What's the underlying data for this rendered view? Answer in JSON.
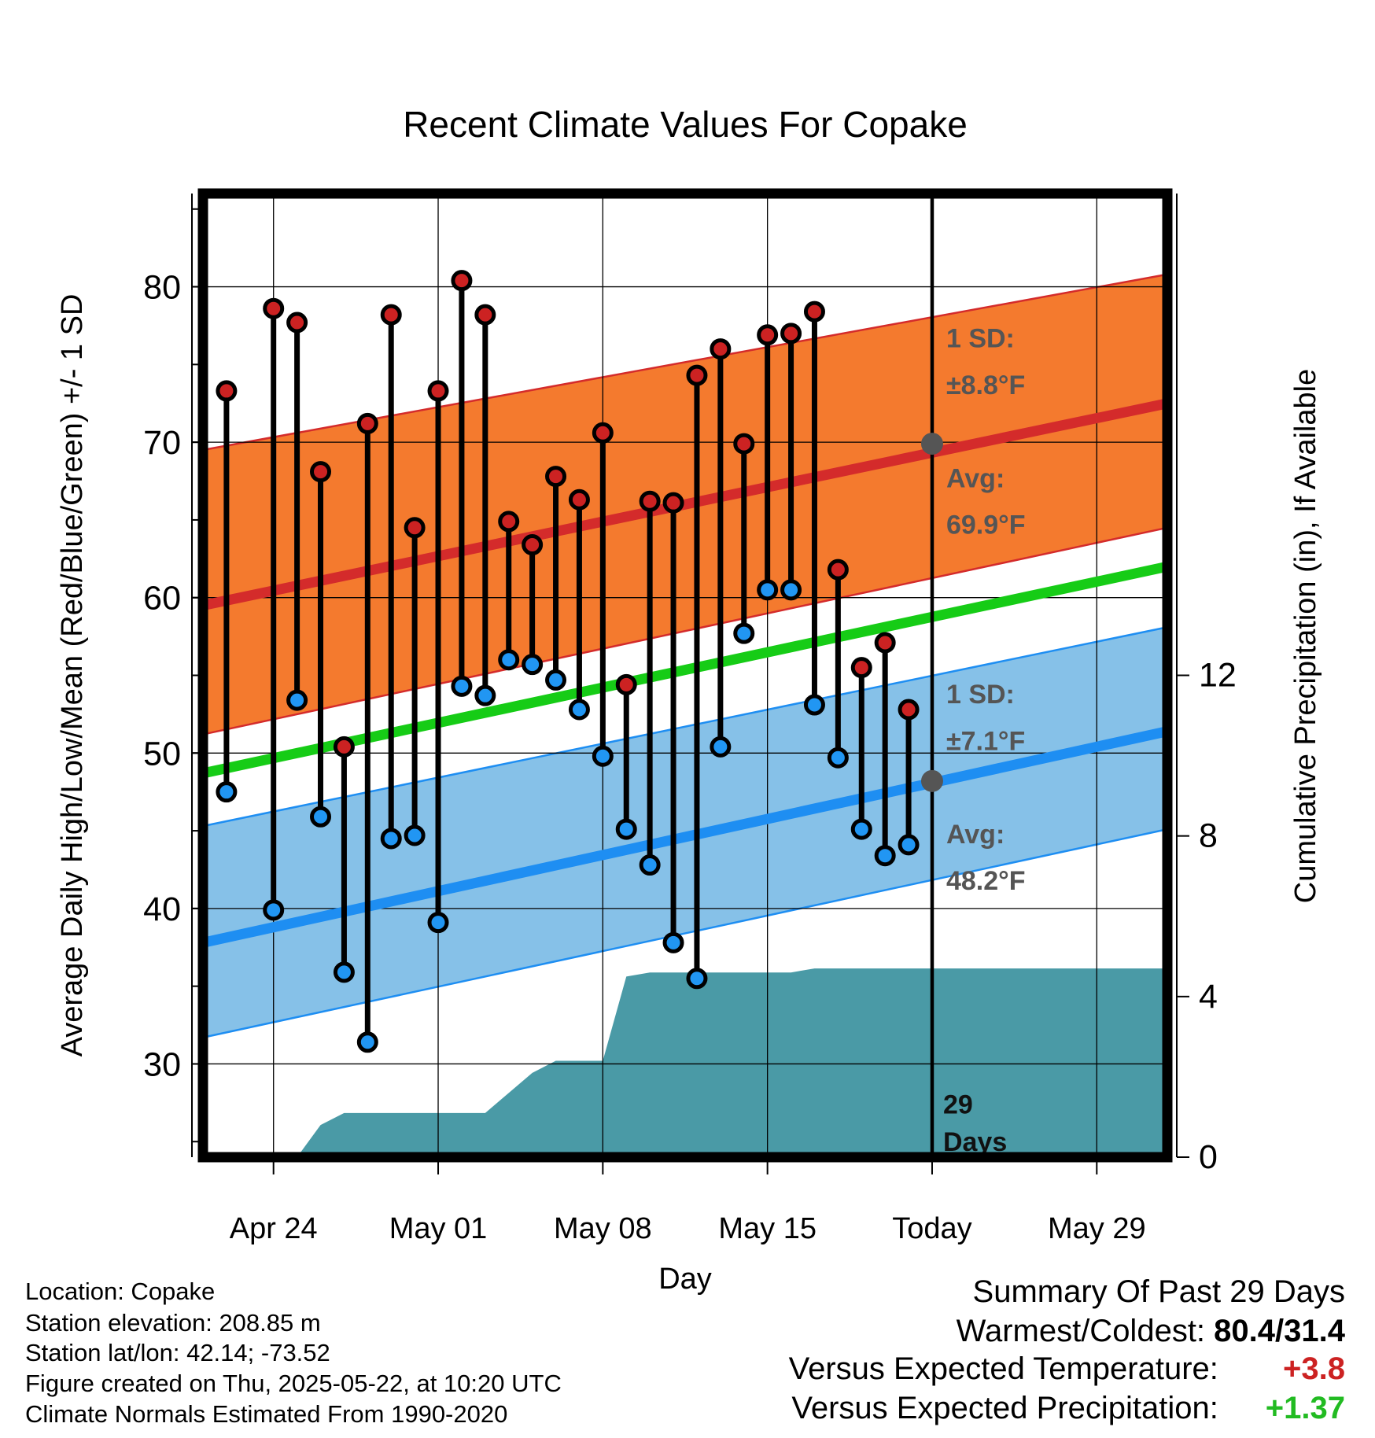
{
  "chart_data": {
    "type": "line",
    "title": "Recent Climate Values For Copake",
    "xlabel": "Day",
    "ylabel": "Average Daily High/Low/Mean (Red/Blue/Green) +/- 1 SD",
    "y2label": "Cumulative Precipitation (in), If Available",
    "x_domain": [
      "2025-04-21",
      "2025-06-01"
    ],
    "ylim": [
      24,
      86
    ],
    "y2lim": [
      0,
      24
    ],
    "yticks": [
      "30",
      "40",
      "50",
      "60",
      "70",
      "80"
    ],
    "y2ticks": [
      "0",
      "4",
      "8",
      "12"
    ],
    "xtick_labels": [
      {
        "date": "2025-04-24",
        "label": "Apr 24"
      },
      {
        "date": "2025-05-01",
        "label": "May 01"
      },
      {
        "date": "2025-05-08",
        "label": "May 08"
      },
      {
        "date": "2025-05-15",
        "label": "May 15"
      },
      {
        "date": "2025-05-22",
        "label": "Today"
      },
      {
        "date": "2025-05-29",
        "label": "May 29"
      }
    ],
    "grid": true,
    "colors": {
      "high_band": "#f47a2e",
      "high_avg": "#d42b2b",
      "low_band": "#86c1e8",
      "low_avg": "#1e8ef2",
      "mean_avg": "#16cc16",
      "precip": "#4a9aa6",
      "high_marker": "#cc2222",
      "low_marker": "#2196f3",
      "annotation": "#555555"
    },
    "normals": {
      "dates": [
        "2025-04-21",
        "2025-06-01"
      ],
      "high_avg": [
        59.5,
        72.5
      ],
      "high_upper": [
        69.5,
        80.8
      ],
      "high_lower": [
        51.2,
        64.5
      ],
      "low_avg": [
        37.8,
        51.4
      ],
      "low_upper": [
        45.3,
        58.1
      ],
      "low_lower": [
        31.7,
        45.1
      ],
      "mean_avg": [
        48.7,
        62.0
      ]
    },
    "observations": {
      "dates": [
        "2025-04-22",
        "2025-04-24",
        "2025-04-25",
        "2025-04-26",
        "2025-04-27",
        "2025-04-28",
        "2025-04-29",
        "2025-04-30",
        "2025-05-01",
        "2025-05-02",
        "2025-05-03",
        "2025-05-04",
        "2025-05-05",
        "2025-05-06",
        "2025-05-07",
        "2025-05-08",
        "2025-05-09",
        "2025-05-10",
        "2025-05-11",
        "2025-05-12",
        "2025-05-13",
        "2025-05-14",
        "2025-05-15",
        "2025-05-16",
        "2025-05-17",
        "2025-05-18",
        "2025-05-19",
        "2025-05-20",
        "2025-05-21"
      ],
      "highs": [
        73.3,
        78.6,
        77.7,
        68.1,
        50.4,
        71.2,
        78.2,
        64.5,
        73.3,
        80.4,
        78.2,
        64.9,
        63.4,
        67.8,
        66.3,
        70.6,
        54.4,
        66.2,
        66.1,
        74.3,
        76.0,
        69.9,
        76.9,
        77.0,
        78.4,
        61.8,
        55.5,
        57.1,
        52.8
      ],
      "lows": [
        47.5,
        39.9,
        53.4,
        45.9,
        35.9,
        31.4,
        44.5,
        44.7,
        39.1,
        54.3,
        53.7,
        56.0,
        55.7,
        54.7,
        52.8,
        49.8,
        45.1,
        42.8,
        37.8,
        35.5,
        50.4,
        57.7,
        60.5,
        60.5,
        53.1,
        49.7,
        45.1,
        43.4,
        44.1
      ]
    },
    "precipitation": {
      "dates": [
        "2025-04-22",
        "2025-04-23",
        "2025-04-24",
        "2025-04-25",
        "2025-04-26",
        "2025-04-27",
        "2025-04-28",
        "2025-04-29",
        "2025-04-30",
        "2025-05-01",
        "2025-05-02",
        "2025-05-03",
        "2025-05-04",
        "2025-05-05",
        "2025-05-06",
        "2025-05-07",
        "2025-05-08",
        "2025-05-09",
        "2025-05-10",
        "2025-05-11",
        "2025-05-12",
        "2025-05-13",
        "2025-05-14",
        "2025-05-15",
        "2025-05-16",
        "2025-05-17",
        "2025-05-18",
        "2025-05-19",
        "2025-05-20",
        "2025-05-21",
        "2025-06-01"
      ],
      "cumulative": [
        0,
        0,
        0,
        0,
        0.8,
        1.1,
        1.1,
        1.1,
        1.1,
        1.1,
        1.1,
        1.1,
        1.6,
        2.1,
        2.4,
        2.4,
        2.4,
        4.5,
        4.6,
        4.6,
        4.6,
        4.6,
        4.6,
        4.6,
        4.6,
        4.7,
        4.7,
        4.7,
        4.7,
        4.7,
        4.7
      ]
    },
    "today": "2025-05-22",
    "today_markers": {
      "high_avg": 69.9,
      "low_avg": 48.2
    },
    "annotations": {
      "high_sd_title": "1 SD:",
      "high_sd_value": "±8.8°F",
      "high_avg_title": "Avg:",
      "high_avg_value": "69.9°F",
      "low_sd_title": "1 SD:",
      "low_sd_value": "±7.1°F",
      "low_avg_title": "Avg:",
      "low_avg_value": "48.2°F",
      "days_number": "29",
      "days_word": "Days"
    }
  },
  "footer": {
    "location": "Location: Copake",
    "elevation": "Station elevation: 208.85 m",
    "latlon": "Station lat/lon: 42.14; -73.52",
    "created": "Figure created on Thu, 2025-05-22, at 10:20 UTC",
    "normals_source": "Climate Normals Estimated From 1990-2020"
  },
  "summary": {
    "title": "Summary Of Past 29 Days",
    "warm_cold_label": "Warmest/Coldest:",
    "warm_cold_value": "80.4/31.4",
    "temp_label": "Versus Expected Temperature:",
    "temp_value": "+3.8",
    "temp_color": "#cc2222",
    "precip_label": "Versus Expected Precipitation:",
    "precip_value": "+1.37",
    "precip_color": "#22bb22"
  }
}
